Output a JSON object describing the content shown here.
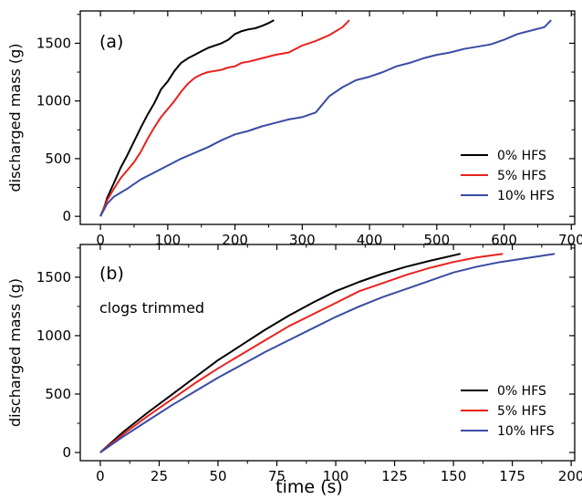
{
  "chart_data": [
    {
      "type": "line",
      "panel_label": "(a)",
      "annotation": "",
      "xlabel": "",
      "ylabel": "discharged mass (g)",
      "xlim": [
        -30,
        705
      ],
      "ylim": [
        -70,
        1780
      ],
      "xticks": [
        0,
        100,
        200,
        300,
        400,
        500,
        600,
        700
      ],
      "yticks": [
        0,
        500,
        1000,
        1500
      ],
      "legend_position": "lower-right",
      "grid": false,
      "series": [
        {
          "name": "0% HFS",
          "color": "#000000",
          "x": [
            0,
            5,
            10,
            20,
            30,
            40,
            50,
            60,
            70,
            80,
            90,
            100,
            110,
            120,
            130,
            140,
            150,
            160,
            170,
            180,
            190,
            200,
            210,
            220,
            230,
            240,
            250,
            258
          ],
          "y": [
            0,
            70,
            160,
            290,
            420,
            530,
            650,
            770,
            880,
            980,
            1100,
            1170,
            1260,
            1330,
            1370,
            1400,
            1430,
            1460,
            1480,
            1500,
            1530,
            1580,
            1605,
            1620,
            1630,
            1650,
            1675,
            1700
          ]
        },
        {
          "name": "5% HFS",
          "color": "#e8221e",
          "x": [
            0,
            10,
            20,
            30,
            40,
            50,
            60,
            70,
            80,
            90,
            100,
            110,
            120,
            130,
            140,
            150,
            160,
            170,
            180,
            190,
            200,
            210,
            220,
            240,
            260,
            280,
            300,
            320,
            340,
            360,
            370
          ],
          "y": [
            0,
            140,
            240,
            330,
            400,
            470,
            560,
            670,
            770,
            860,
            930,
            1000,
            1080,
            1150,
            1200,
            1230,
            1250,
            1260,
            1270,
            1290,
            1300,
            1330,
            1340,
            1370,
            1400,
            1420,
            1480,
            1520,
            1570,
            1640,
            1700
          ]
        },
        {
          "name": "10% HFS",
          "color": "#3a4ba3",
          "x": [
            0,
            10,
            20,
            40,
            60,
            80,
            100,
            120,
            140,
            160,
            180,
            200,
            220,
            240,
            260,
            280,
            300,
            320,
            340,
            360,
            380,
            400,
            420,
            440,
            460,
            480,
            500,
            520,
            540,
            560,
            580,
            600,
            620,
            640,
            660,
            670
          ],
          "y": [
            0,
            110,
            170,
            240,
            320,
            380,
            440,
            500,
            550,
            600,
            660,
            710,
            740,
            780,
            810,
            840,
            860,
            900,
            1040,
            1120,
            1180,
            1210,
            1250,
            1300,
            1330,
            1370,
            1400,
            1420,
            1450,
            1470,
            1490,
            1530,
            1580,
            1610,
            1640,
            1700
          ]
        }
      ]
    },
    {
      "type": "line",
      "panel_label": "(b)",
      "annotation": "clogs trimmed",
      "xlabel": "time (s)",
      "ylabel": "discharged mass (g)",
      "xlim": [
        -8.5,
        201.5
      ],
      "ylim": [
        -70,
        1780
      ],
      "xticks": [
        0,
        25,
        50,
        75,
        100,
        125,
        150,
        175,
        200
      ],
      "yticks": [
        0,
        500,
        1000,
        1500
      ],
      "legend_position": "lower-right",
      "grid": false,
      "series": [
        {
          "name": "0% HFS",
          "color": "#000000",
          "x": [
            0,
            10,
            20,
            30,
            40,
            50,
            60,
            70,
            80,
            90,
            100,
            110,
            120,
            130,
            140,
            153
          ],
          "y": [
            0,
            180,
            340,
            490,
            640,
            790,
            920,
            1050,
            1170,
            1280,
            1380,
            1460,
            1530,
            1590,
            1640,
            1700
          ]
        },
        {
          "name": "5% HFS",
          "color": "#e8221e",
          "x": [
            0,
            10,
            20,
            30,
            40,
            50,
            60,
            70,
            80,
            90,
            100,
            110,
            120,
            130,
            140,
            150,
            160,
            171
          ],
          "y": [
            0,
            160,
            310,
            450,
            590,
            720,
            840,
            960,
            1080,
            1180,
            1280,
            1380,
            1450,
            1520,
            1580,
            1630,
            1670,
            1700
          ]
        },
        {
          "name": "10% HFS",
          "color": "#3a4ba3",
          "x": [
            0,
            10,
            20,
            30,
            40,
            50,
            60,
            70,
            80,
            90,
            100,
            110,
            120,
            130,
            140,
            150,
            160,
            170,
            180,
            193
          ],
          "y": [
            0,
            140,
            270,
            400,
            520,
            640,
            750,
            860,
            960,
            1060,
            1160,
            1250,
            1330,
            1400,
            1470,
            1540,
            1590,
            1630,
            1660,
            1700
          ]
        }
      ]
    }
  ]
}
